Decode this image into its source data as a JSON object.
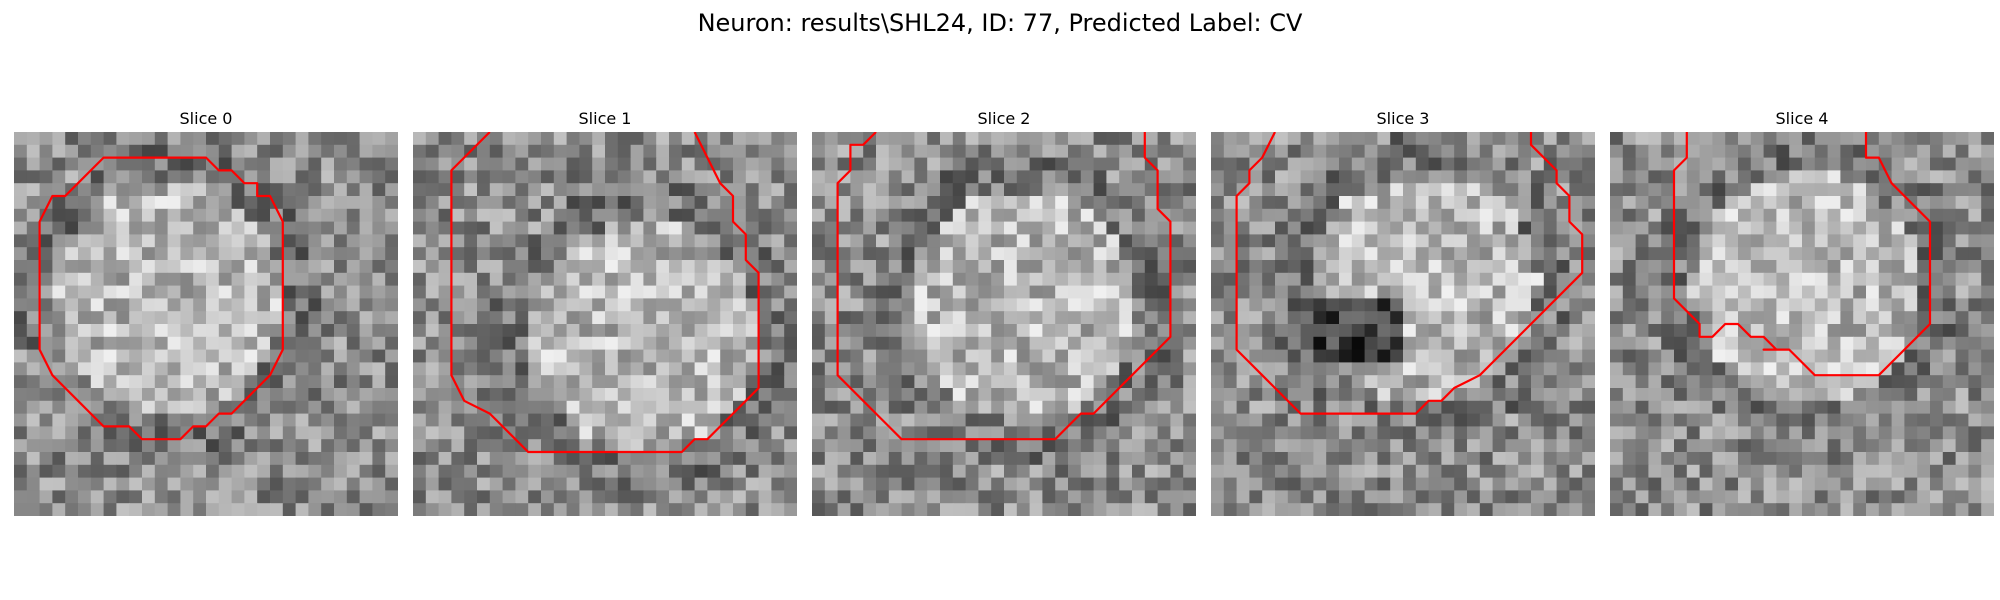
{
  "figure": {
    "title": "Neuron: results\\SHL24, ID: 77, Predicted Label: CV"
  },
  "slices": [
    {
      "title": "Slice 0",
      "shape": "full",
      "bright_region": "upper-center"
    },
    {
      "title": "Slice 1",
      "shape": "open-top",
      "bright_region": "center"
    },
    {
      "title": "Slice 2",
      "shape": "open-top",
      "bright_region": "center-left"
    },
    {
      "title": "Slice 3",
      "shape": "open-top",
      "bright_region": "with-dark-core"
    },
    {
      "title": "Slice 4",
      "shape": "open-top-notched",
      "bright_region": "upper-center"
    }
  ],
  "colors": {
    "contour": "#ff0000",
    "image_map": "grayscale"
  }
}
